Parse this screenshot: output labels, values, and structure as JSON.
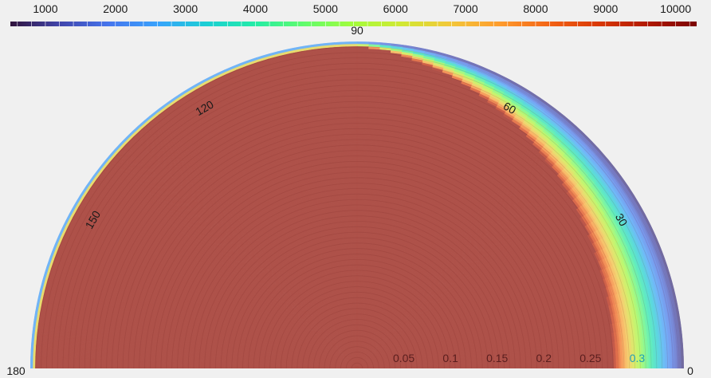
{
  "chart_data": {
    "type": "heatmap",
    "projection": "polar-half",
    "colormap": "turbo",
    "colorbar": {
      "range": [
        500,
        10300
      ],
      "tick_values": [
        1000,
        2000,
        3000,
        4000,
        5000,
        6000,
        7000,
        8000,
        9000,
        10000
      ],
      "tick_labels": [
        "1000",
        "2000",
        "3000",
        "4000",
        "5000",
        "6000",
        "7000",
        "8000",
        "9000",
        "10000"
      ],
      "placement": "top"
    },
    "angular_axis": {
      "range": [
        0,
        180
      ],
      "tick_values": [
        0,
        30,
        60,
        90,
        120,
        150,
        180
      ],
      "tick_labels": [
        "0",
        "30",
        "60",
        "90",
        "120",
        "150",
        "180"
      ]
    },
    "radial_axis": {
      "range": [
        0,
        0.35
      ],
      "tick_values": [
        0.05,
        0.1,
        0.15,
        0.2,
        0.25,
        0.3
      ],
      "tick_labels": [
        "0.05",
        "0.1",
        "0.15",
        "0.2",
        "0.25",
        "0.3"
      ]
    },
    "contour_levels": 60,
    "field_description_points": [
      {
        "angle": 90,
        "r": 0.3,
        "value": 10000
      },
      {
        "angle": 0,
        "r": 0.26,
        "value": 9800
      },
      {
        "angle": 0,
        "r": 0.29,
        "value": 3700
      },
      {
        "angle": 0,
        "r": 0.34,
        "value": 1500
      },
      {
        "angle": 180,
        "r": 0.345,
        "value": 5000
      }
    ]
  },
  "colors": {
    "background": "#f0f0f0",
    "field_top": "#b85e58"
  }
}
